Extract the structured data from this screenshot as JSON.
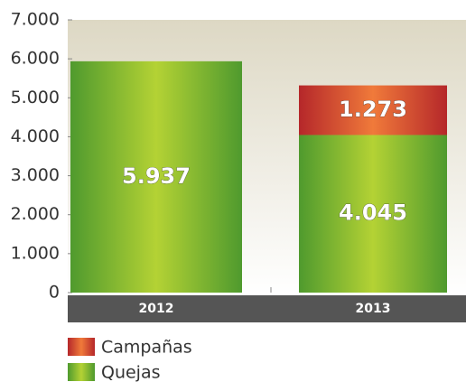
{
  "chart_data": {
    "type": "stacked_bar",
    "categories": [
      "2012",
      "2013"
    ],
    "series": [
      {
        "name": "Quejas",
        "color": "#4f9a2e",
        "values": [
          5937,
          4045
        ],
        "value_labels": [
          "5.937",
          "4.045"
        ]
      },
      {
        "name": "Campañas",
        "color": "#b5272a",
        "values": [
          null,
          1273
        ],
        "value_labels": [
          null,
          "1.273"
        ]
      }
    ],
    "ylim": [
      0,
      7000
    ],
    "yticks": [
      0,
      {
        "value": 1000,
        "label": "1.000"
      },
      {
        "value": 2000,
        "label": "2.000"
      },
      {
        "value": 3000,
        "label": "3.000"
      },
      {
        "value": 4000,
        "label": "4.000"
      },
      {
        "value": 5000,
        "label": "5.000"
      },
      {
        "value": 6000,
        "label": "6.000"
      },
      {
        "value": 7000,
        "label": "7.000"
      }
    ]
  }
}
